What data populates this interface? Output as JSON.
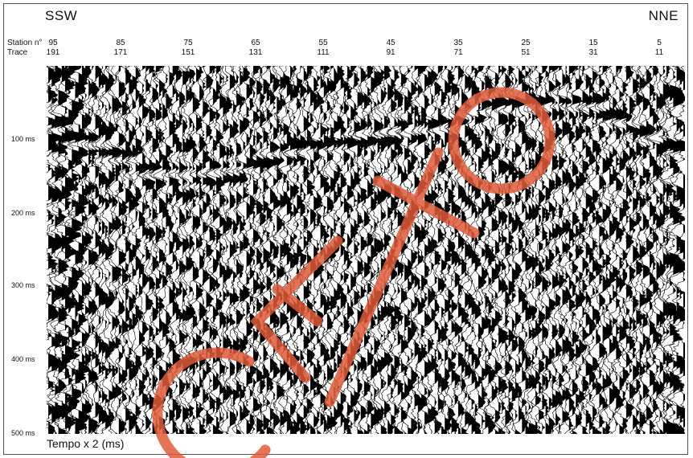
{
  "labels": {
    "left_direction": "SSW",
    "right_direction": "NNE",
    "station_label": "Station n°",
    "trace_label": "Trace",
    "time_axis": "Tempo x 2 (ms)"
  },
  "stations": [
    "95",
    "85",
    "75",
    "65",
    "55",
    "45",
    "35",
    "25",
    "15",
    "5"
  ],
  "traces": [
    "191",
    "171",
    "151",
    "131",
    "111",
    "91",
    "71",
    "51",
    "31",
    "11"
  ],
  "time_ticks": [
    "100 ms",
    "200 ms",
    "300 ms",
    "400 ms",
    "500 ms"
  ],
  "colors": {
    "ink": "#000000",
    "background": "#ffffff",
    "watermark": "#e05a3a"
  }
}
